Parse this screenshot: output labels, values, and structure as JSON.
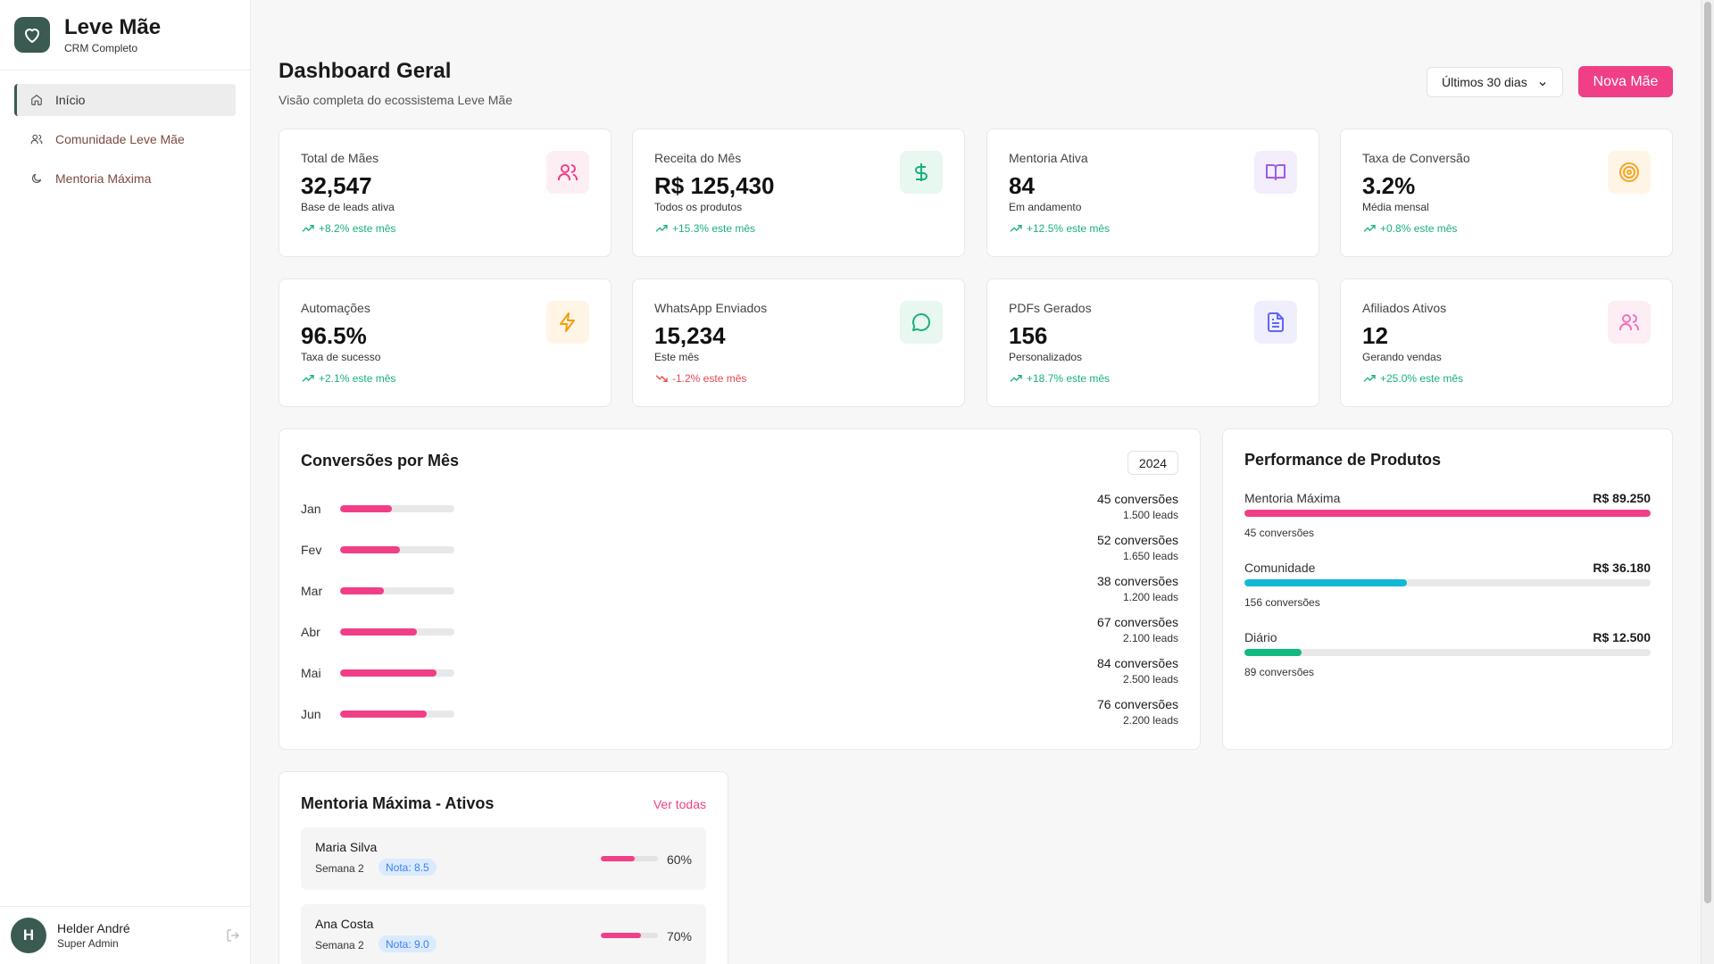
{
  "brand": {
    "title": "Leve Mãe",
    "subtitle": "CRM Completo"
  },
  "nav": [
    {
      "label": "Início",
      "icon": "home-icon",
      "active": true
    },
    {
      "label": "Comunidade Leve Mãe",
      "icon": "users-icon",
      "active": false
    },
    {
      "label": "Mentoria Máxima",
      "icon": "moon-icon",
      "active": false
    }
  ],
  "user": {
    "initial": "H",
    "name": "Helder André",
    "role": "Super Admin"
  },
  "header": {
    "title": "Dashboard Geral",
    "subtitle": "Visão completa do ecossistema Leve Mãe",
    "period": "Últimos 30 dias",
    "new_button": "Nova Mãe"
  },
  "stats": [
    {
      "label": "Total de Mães",
      "value": "32,547",
      "desc": "Base de leads ativa",
      "trend": "+8.2% este mês",
      "dir": "up",
      "icon": "users-icon",
      "color": "#f03f86",
      "bg": "#fdeef4"
    },
    {
      "label": "Receita do Mês",
      "value": "R$ 125,430",
      "desc": "Todos os produtos",
      "trend": "+15.3% este mês",
      "dir": "up",
      "icon": "dollar-icon",
      "color": "#19b07a",
      "bg": "#e8f7f0"
    },
    {
      "label": "Mentoria Ativa",
      "value": "84",
      "desc": "Em andamento",
      "trend": "+12.5% este mês",
      "dir": "up",
      "icon": "book-icon",
      "color": "#9b5de5",
      "bg": "#f3edfc"
    },
    {
      "label": "Taxa de Conversão",
      "value": "3.2%",
      "desc": "Média mensal",
      "trend": "+0.8% este mês",
      "dir": "up",
      "icon": "target-icon",
      "color": "#f5a524",
      "bg": "#fff5e6"
    },
    {
      "label": "Automações",
      "value": "96.5%",
      "desc": "Taxa de sucesso",
      "trend": "+2.1% este mês",
      "dir": "up",
      "icon": "bolt-icon",
      "color": "#f59e0b",
      "bg": "#fff5e6"
    },
    {
      "label": "WhatsApp Enviados",
      "value": "15,234",
      "desc": "Este mês",
      "trend": "-1.2% este mês",
      "dir": "down",
      "icon": "message-icon",
      "color": "#19b07a",
      "bg": "#e8f7f0"
    },
    {
      "label": "PDFs Gerados",
      "value": "156",
      "desc": "Personalizados",
      "trend": "+18.7% este mês",
      "dir": "up",
      "icon": "file-icon",
      "color": "#6366f1",
      "bg": "#eeeefd"
    },
    {
      "label": "Afiliados Ativos",
      "value": "12",
      "desc": "Gerando vendas",
      "trend": "+25.0% este mês",
      "dir": "up",
      "icon": "users-icon",
      "color": "#f472b6",
      "bg": "#fdeef6"
    }
  ],
  "conversions": {
    "title": "Conversões por Mês",
    "year": "2024",
    "rows": [
      {
        "month": "Jan",
        "conv": "45 conversões",
        "leads": "1.500 leads",
        "pct": 45
      },
      {
        "month": "Fev",
        "conv": "52 conversões",
        "leads": "1.650 leads",
        "pct": 52
      },
      {
        "month": "Mar",
        "conv": "38 conversões",
        "leads": "1.200 leads",
        "pct": 38
      },
      {
        "month": "Abr",
        "conv": "67 conversões",
        "leads": "2.100 leads",
        "pct": 67
      },
      {
        "month": "Mai",
        "conv": "84 conversões",
        "leads": "2.500 leads",
        "pct": 84
      },
      {
        "month": "Jun",
        "conv": "76 conversões",
        "leads": "2.200 leads",
        "pct": 76
      }
    ]
  },
  "products": {
    "title": "Performance de Produtos",
    "items": [
      {
        "name": "Mentoria Máxima",
        "value": "R$ 89.250",
        "conv": "45 conversões",
        "pct": 100,
        "color": "#f03f86"
      },
      {
        "name": "Comunidade",
        "value": "R$ 36.180",
        "conv": "156 conversões",
        "pct": 40,
        "color": "#14b8d4"
      },
      {
        "name": "Diário",
        "value": "R$ 12.500",
        "conv": "89 conversões",
        "pct": 14,
        "color": "#10b981"
      }
    ]
  },
  "mentoria": {
    "title": "Mentoria Máxima - Ativos",
    "link": "Ver todas",
    "items": [
      {
        "name": "Maria Silva",
        "week": "Semana 2",
        "nota": "Nota: 8.5",
        "pct_label": "60%",
        "pct": 60
      },
      {
        "name": "Ana Costa",
        "week": "Semana 2",
        "nota": "Nota: 9.0",
        "pct_label": "70%",
        "pct": 70
      }
    ]
  }
}
